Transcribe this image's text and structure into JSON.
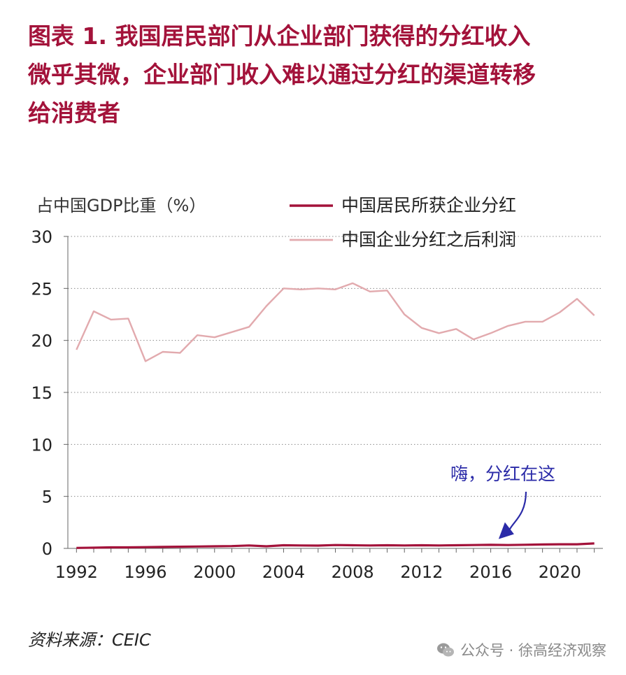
{
  "title": {
    "line1": "图表 1.   我国居民部门从企业部门获得的分红收入",
    "line2": "微乎其微，企业部门收入难以通过分红的渠道转移",
    "line3": "给消费者"
  },
  "source": "资料来源：CEIC",
  "watermark": {
    "text": "公众号 · 徐高经济观察",
    "icon": "wechat-icon"
  },
  "colors": {
    "title": "#a3123a",
    "dividend": "#a3123a",
    "profit": "#e2aaae",
    "annotation": "#2b2ba8",
    "axis": "#666666"
  },
  "chart_data": {
    "type": "line",
    "ylabel": "占中国GDP比重（%）",
    "xlabel": "",
    "xlim": [
      1991.5,
      2022.5
    ],
    "ylim": [
      0,
      30
    ],
    "yticks": [
      0,
      5,
      10,
      15,
      20,
      25,
      30
    ],
    "xticks": [
      1992,
      1996,
      2000,
      2004,
      2008,
      2012,
      2016,
      2020
    ],
    "grid": "y-dotted",
    "legend_position": "top-right",
    "x": [
      1992,
      1993,
      1994,
      1995,
      1996,
      1997,
      1998,
      1999,
      2000,
      2001,
      2002,
      2003,
      2004,
      2005,
      2006,
      2007,
      2008,
      2009,
      2010,
      2011,
      2012,
      2013,
      2014,
      2015,
      2016,
      2017,
      2018,
      2019,
      2020,
      2021,
      2022
    ],
    "series": [
      {
        "name": "中国居民所获企业分红",
        "color": "#a3123a",
        "width": 3.2,
        "values": [
          0.05,
          0.07,
          0.1,
          0.1,
          0.12,
          0.14,
          0.16,
          0.18,
          0.2,
          0.22,
          0.28,
          0.2,
          0.3,
          0.28,
          0.27,
          0.32,
          0.3,
          0.28,
          0.3,
          0.28,
          0.3,
          0.28,
          0.3,
          0.32,
          0.34,
          0.32,
          0.35,
          0.38,
          0.4,
          0.4,
          0.48
        ]
      },
      {
        "name": "中国企业分红之后利润",
        "color": "#e2aaae",
        "width": 2.4,
        "values": [
          19.1,
          22.8,
          22.0,
          22.1,
          18.0,
          18.9,
          18.8,
          20.5,
          20.3,
          20.8,
          21.3,
          23.3,
          25.0,
          24.9,
          25.0,
          24.9,
          25.5,
          24.7,
          24.8,
          22.5,
          21.2,
          20.7,
          21.1,
          20.1,
          20.7,
          21.4,
          21.8,
          21.8,
          22.7,
          24.0,
          22.4
        ]
      }
    ],
    "annotation": {
      "text": "嗨，分红在这",
      "x": 2016.7,
      "y": 0.5
    }
  }
}
